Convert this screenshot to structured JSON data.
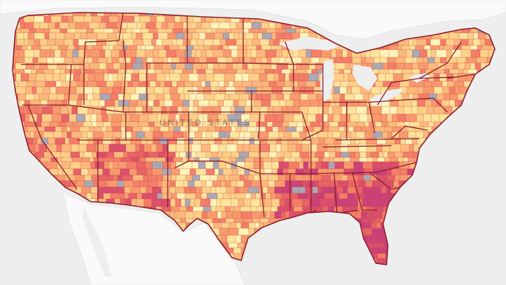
{
  "map": {
    "country_label": "UNITED STATES",
    "colors": {
      "water": "#eeeeee",
      "land": "#fafafa",
      "border_state": "#8a1c2a",
      "border_county": "#b64a4a",
      "no_data": "#a9a9b3"
    },
    "palette": [
      "#fff3b8",
      "#ffe39a",
      "#ffd088",
      "#fdb97c",
      "#f99a6e",
      "#f47e67",
      "#e86465",
      "#db4f6a",
      "#cc4178"
    ],
    "legend_visible": false
  }
}
